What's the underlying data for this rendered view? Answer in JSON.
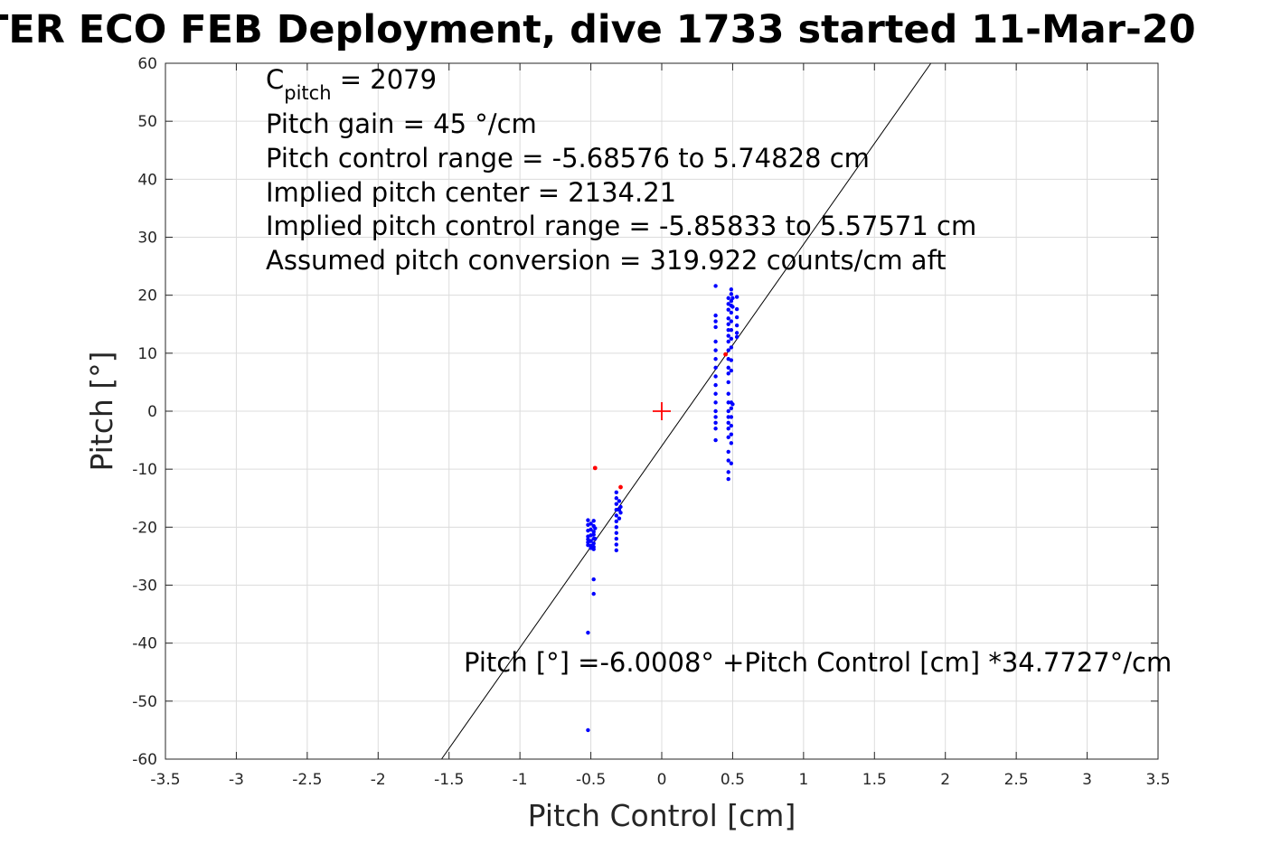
{
  "chart_data": {
    "type": "scatter",
    "title": "TER ECO FEB Deployment, dive 1733 started 11-Mar-20",
    "xlabel": "Pitch Control [cm]",
    "ylabel": "Pitch [°]",
    "xlim": [
      -3.5,
      3.5
    ],
    "ylim": [
      -60,
      60
    ],
    "xticks": [
      -3.5,
      -3,
      -2.5,
      -2,
      -1.5,
      -1,
      -0.5,
      0,
      0.5,
      1,
      1.5,
      2,
      2.5,
      3,
      3.5
    ],
    "xtick_labels": [
      "-3.5",
      "-3",
      "-2.5",
      "-2",
      "-1.5",
      "-1",
      "-0.5",
      "0",
      "0.5",
      "1",
      "1.5",
      "2",
      "2.5",
      "3",
      "3.5"
    ],
    "yticks": [
      -60,
      -50,
      -40,
      -30,
      -20,
      -10,
      0,
      10,
      20,
      30,
      40,
      50,
      60
    ],
    "ytick_labels": [
      "-60",
      "-50",
      "-40",
      "-30",
      "-20",
      "-10",
      "0",
      "10",
      "20",
      "30",
      "40",
      "50",
      "60"
    ],
    "grid": true,
    "colors": {
      "data": "#0000ff",
      "excluded": "#ff0000",
      "fit": "#000000",
      "grid": "#dcdcdc",
      "center": "#ff0000"
    },
    "fit_line": {
      "intercept": -6.0008,
      "slope": 34.7727
    },
    "center_marker": {
      "x": 0,
      "y": 0
    },
    "series": [
      {
        "color": "#0000ff",
        "points": [
          [
            -0.52,
            -18.8
          ],
          [
            -0.52,
            -19.6
          ],
          [
            -0.52,
            -20.6
          ],
          [
            -0.52,
            -21.6
          ],
          [
            -0.52,
            -22.1
          ],
          [
            -0.52,
            -22.6
          ],
          [
            -0.52,
            -23.1
          ],
          [
            -0.52,
            -38.2
          ],
          [
            -0.52,
            -55.0
          ],
          [
            -0.5,
            -19.4
          ],
          [
            -0.5,
            -20.4
          ],
          [
            -0.5,
            -21.4
          ],
          [
            -0.5,
            -22.4
          ],
          [
            -0.5,
            -23.2
          ],
          [
            -0.5,
            -23.6
          ],
          [
            -0.48,
            -18.9
          ],
          [
            -0.48,
            -19.8
          ],
          [
            -0.48,
            -20.8
          ],
          [
            -0.48,
            -21.3
          ],
          [
            -0.48,
            -22.0
          ],
          [
            -0.48,
            -22.8
          ],
          [
            -0.48,
            -23.4
          ],
          [
            -0.48,
            -23.8
          ],
          [
            -0.48,
            -29.0
          ],
          [
            -0.48,
            -31.5
          ],
          [
            -0.47,
            -20.2
          ],
          [
            -0.47,
            -22.0
          ],
          [
            -0.32,
            -14.0
          ],
          [
            -0.32,
            -15.0
          ],
          [
            -0.32,
            -16.0
          ],
          [
            -0.32,
            -17.0
          ],
          [
            -0.32,
            -18.0
          ],
          [
            -0.32,
            -19.0
          ],
          [
            -0.32,
            -20.0
          ],
          [
            -0.32,
            -21.0
          ],
          [
            -0.32,
            -22.0
          ],
          [
            -0.32,
            -23.0
          ],
          [
            -0.32,
            -24.0
          ],
          [
            -0.3,
            -15.5
          ],
          [
            -0.3,
            -17.0
          ],
          [
            -0.3,
            -18.5
          ],
          [
            -0.29,
            -16.5
          ],
          [
            -0.29,
            -17.5
          ],
          [
            0.38,
            21.6
          ],
          [
            0.38,
            16.5
          ],
          [
            0.38,
            15.5
          ],
          [
            0.38,
            14.5
          ],
          [
            0.38,
            12.0
          ],
          [
            0.38,
            10.5
          ],
          [
            0.38,
            9.0
          ],
          [
            0.38,
            7.5
          ],
          [
            0.38,
            6.0
          ],
          [
            0.38,
            4.5
          ],
          [
            0.38,
            3.0
          ],
          [
            0.38,
            1.5
          ],
          [
            0.38,
            0.0
          ],
          [
            0.38,
            -1.0
          ],
          [
            0.38,
            -2.0
          ],
          [
            0.38,
            -3.0
          ],
          [
            0.38,
            -5.0
          ],
          [
            0.47,
            19.5
          ],
          [
            0.47,
            18.5
          ],
          [
            0.47,
            17.5
          ],
          [
            0.47,
            16.0
          ],
          [
            0.47,
            15.0
          ],
          [
            0.47,
            14.0
          ],
          [
            0.47,
            13.0
          ],
          [
            0.47,
            12.0
          ],
          [
            0.47,
            10.5
          ],
          [
            0.47,
            9.0
          ],
          [
            0.47,
            7.5
          ],
          [
            0.47,
            6.5
          ],
          [
            0.47,
            5.0
          ],
          [
            0.47,
            3.0
          ],
          [
            0.47,
            1.5
          ],
          [
            0.47,
            0.0
          ],
          [
            0.47,
            -1.0
          ],
          [
            0.47,
            -2.0
          ],
          [
            0.47,
            -3.0
          ],
          [
            0.47,
            -4.5
          ],
          [
            0.47,
            -7.0
          ],
          [
            0.47,
            -8.5
          ],
          [
            0.47,
            -10.5
          ],
          [
            0.47,
            -11.7
          ],
          [
            0.49,
            21.0
          ],
          [
            0.49,
            20.2
          ],
          [
            0.49,
            19.0
          ],
          [
            0.49,
            18.2
          ],
          [
            0.49,
            17.0
          ],
          [
            0.49,
            15.5
          ],
          [
            0.49,
            14.0
          ],
          [
            0.49,
            12.5
          ],
          [
            0.49,
            11.0
          ],
          [
            0.49,
            8.8
          ],
          [
            0.49,
            7.0
          ],
          [
            0.49,
            1.5
          ],
          [
            0.49,
            0.5
          ],
          [
            0.49,
            -1.0
          ],
          [
            0.49,
            -2.5
          ],
          [
            0.49,
            -4.0
          ],
          [
            0.49,
            -5.5
          ],
          [
            0.49,
            -9.0
          ],
          [
            0.5,
            19.5
          ],
          [
            0.5,
            18.0
          ],
          [
            0.5,
            1.2
          ],
          [
            0.53,
            19.7
          ],
          [
            0.53,
            17.6
          ],
          [
            0.53,
            16.2
          ],
          [
            0.53,
            14.8
          ],
          [
            0.53,
            13.5
          ],
          [
            0.53,
            12.8
          ]
        ]
      },
      {
        "color": "#ff0000",
        "points": [
          [
            -0.47,
            -9.8
          ],
          [
            -0.29,
            -13.1
          ],
          [
            0.45,
            9.8
          ]
        ]
      }
    ]
  },
  "annotations": {
    "c_pitch_symbol": "C",
    "c_pitch_subscript": "pitch",
    "c_pitch_value": " = 2079",
    "line2": "Pitch gain = 45 °/cm",
    "line3": "Pitch control range = -5.68576 to 5.74828 cm",
    "line4": "Implied pitch center = 2134.21",
    "line5": "Implied pitch control range = -5.85833 to 5.57571 cm",
    "line6": "Assumed pitch conversion = 319.922 counts/cm aft",
    "fit_equation": "Pitch [°] =-6.0008° +Pitch Control [cm] *34.7727°/cm"
  }
}
